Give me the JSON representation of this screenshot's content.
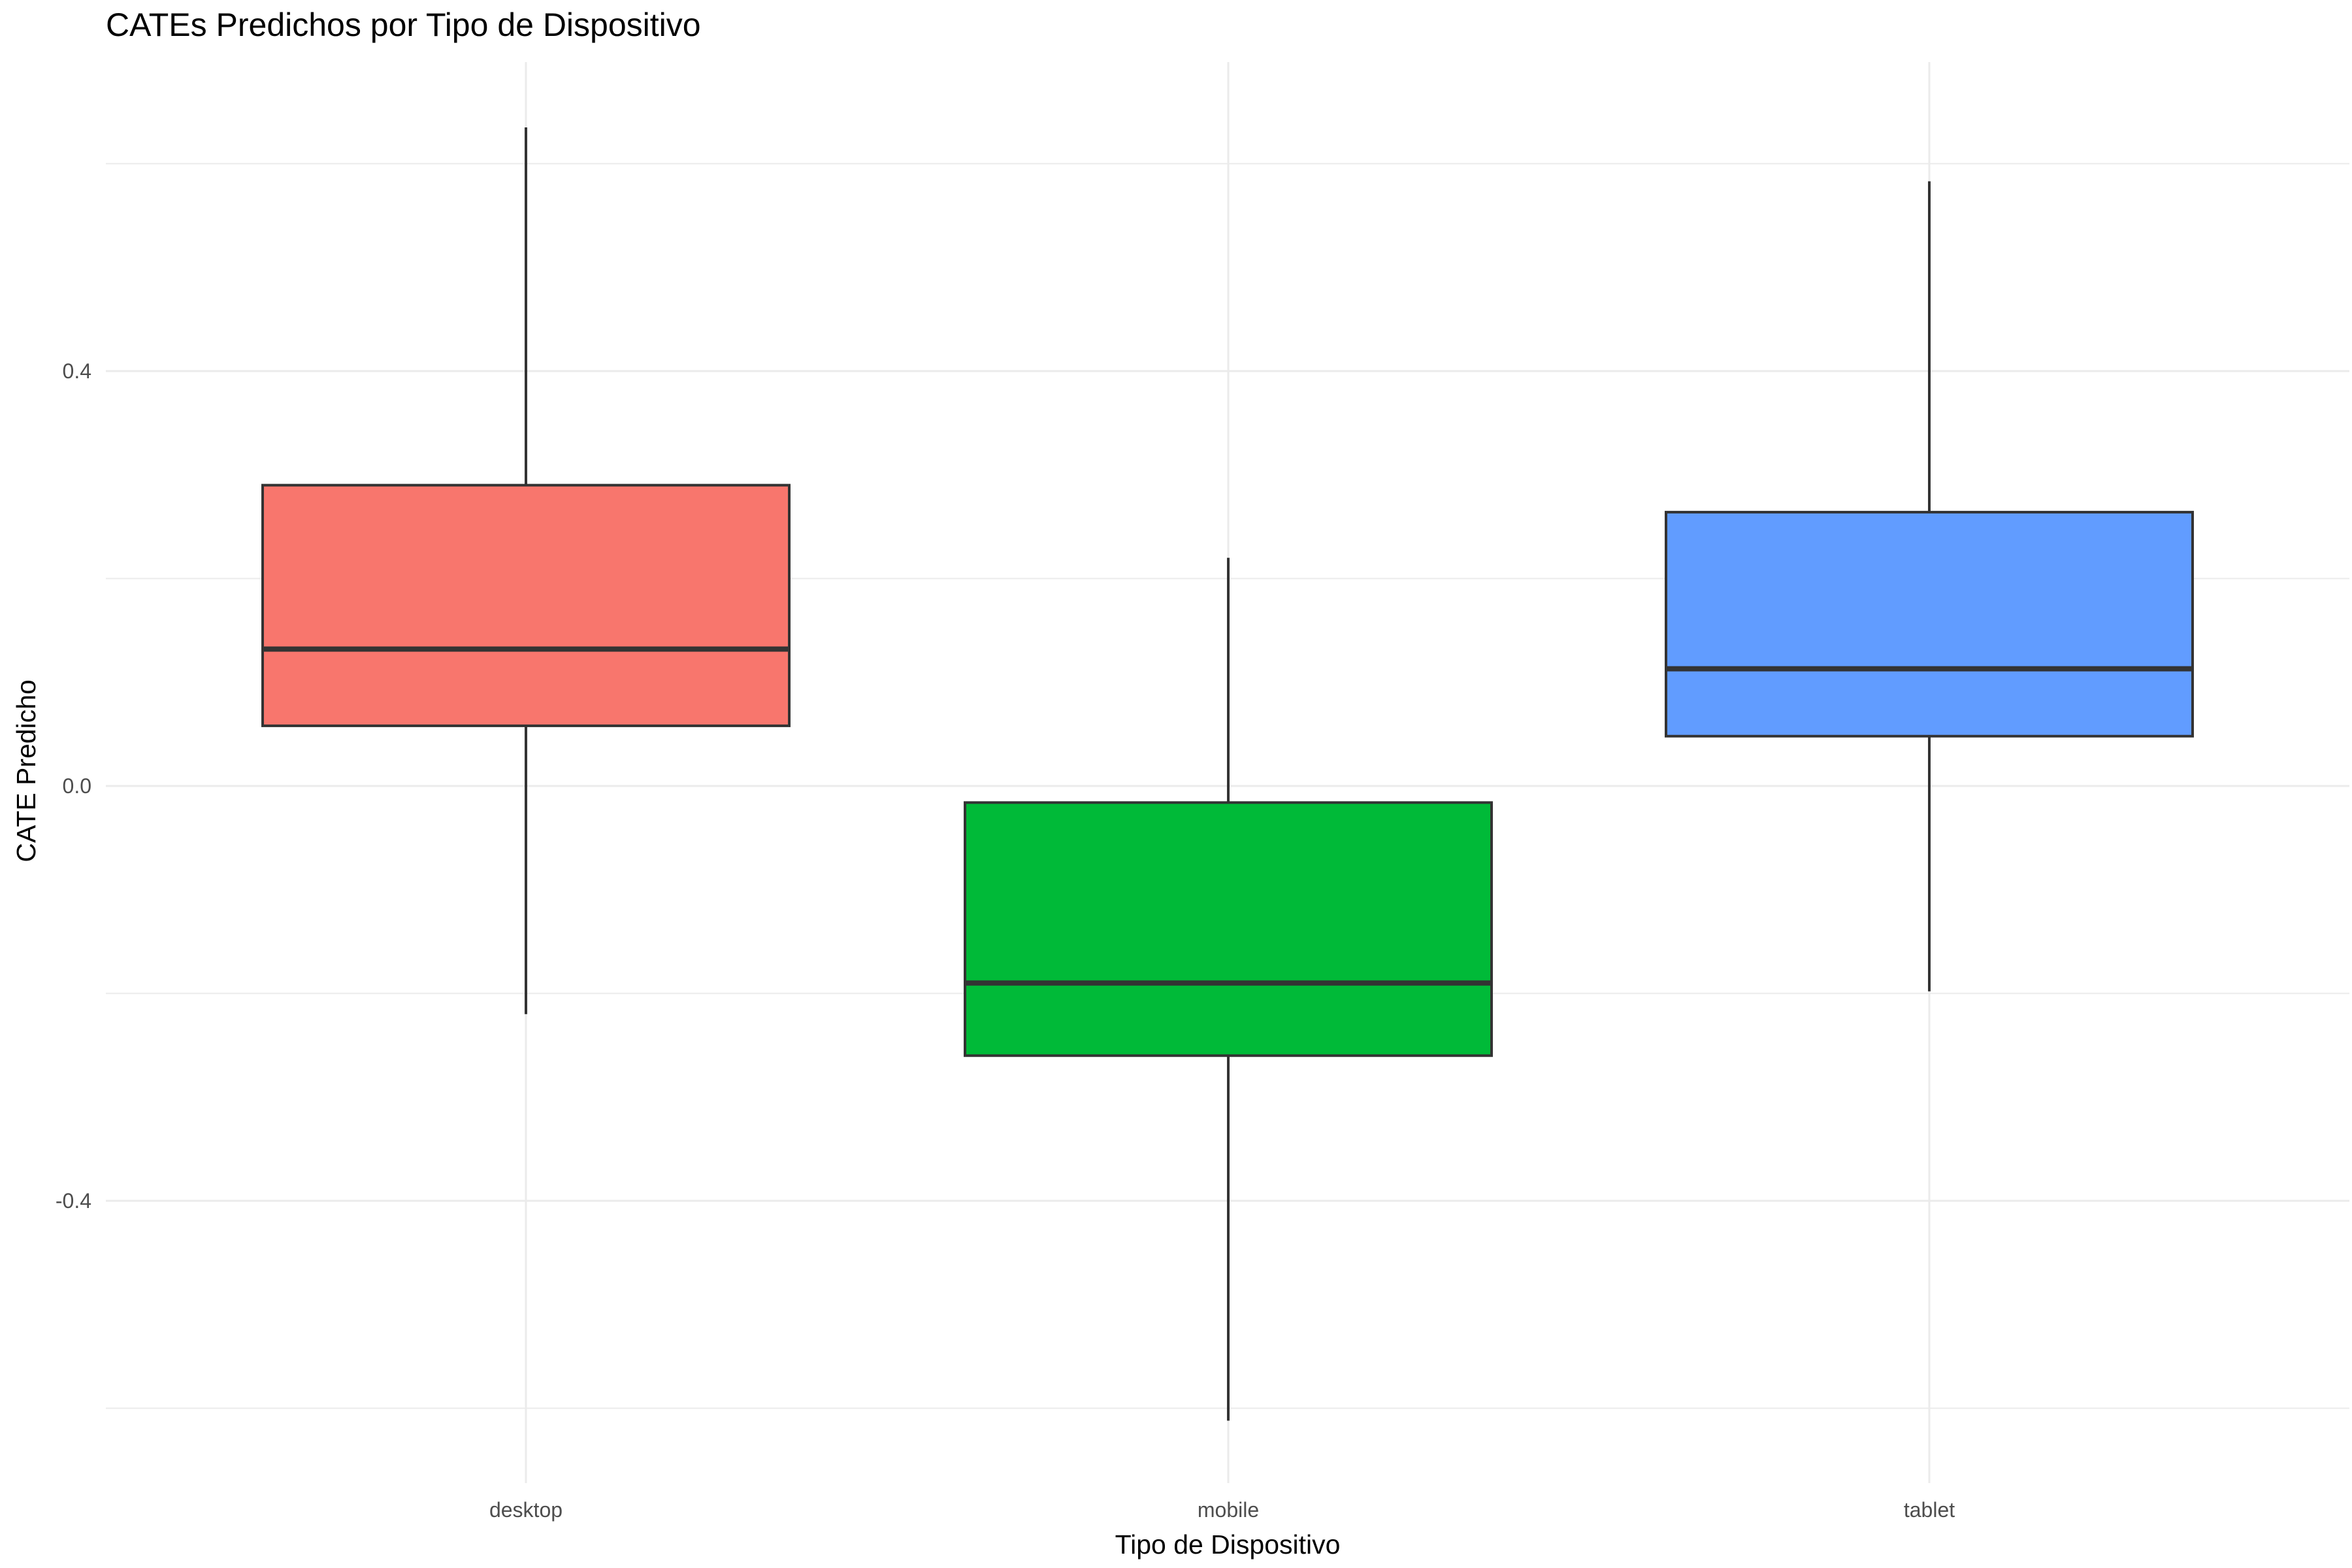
{
  "chart_data": {
    "type": "box",
    "title": "CATEs Predichos por Tipo de Dispositivo",
    "xlabel": "Tipo de Dispositivo",
    "ylabel": "CATE Predicho",
    "categories": [
      "desktop",
      "mobile",
      "tablet"
    ],
    "ylim": [
      -0.68,
      0.7
    ],
    "yticks": [
      {
        "value": 0.4,
        "label": "0.4"
      },
      {
        "value": 0.0,
        "label": "0.0"
      },
      {
        "value": -0.4,
        "label": "-0.4"
      }
    ],
    "minor_gridlines": [
      0.6,
      0.2,
      -0.2,
      -0.6
    ],
    "grid": true,
    "legend": "none",
    "boxes": [
      {
        "category": "desktop",
        "min": -0.22,
        "q1": 0.058,
        "median": 0.132,
        "q3": 0.29,
        "max": 0.635,
        "color": "#F8766D"
      },
      {
        "category": "mobile",
        "min": -0.612,
        "q1": -0.26,
        "median": -0.19,
        "q3": -0.016,
        "max": 0.22,
        "color": "#00BA38"
      },
      {
        "category": "tablet",
        "min": -0.198,
        "q1": 0.048,
        "median": 0.113,
        "q3": 0.264,
        "max": 0.583,
        "color": "#619CFF"
      }
    ],
    "colors": {
      "box_outline": "#333333",
      "whisker": "#333333",
      "grid": "#ebebeb"
    }
  }
}
